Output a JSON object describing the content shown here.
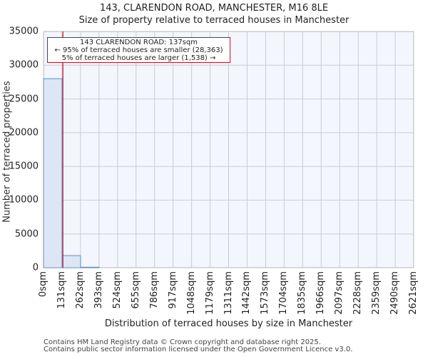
{
  "title_line1": "143, CLARENDON ROAD, MANCHESTER, M16 8LE",
  "title_line2": "Size of property relative to terraced houses in Manchester",
  "annotation": {
    "line1": "143 CLARENDON ROAD: 137sqm",
    "line2": "← 95% of terraced houses are smaller (28,363)",
    "line3": "5% of terraced houses are larger (1,538) →"
  },
  "footer": {
    "line1": "Contains HM Land Registry data © Crown copyright and database right 2025.",
    "line2": "Contains public sector information licensed under the Open Government Licence v3.0."
  },
  "colors": {
    "bar_fill": "#dce6f5",
    "bar_edge": "#5b8fd0",
    "marker_line": "#b2182b",
    "plot_bg": "#f3f6fd",
    "grid": "#cccccc"
  },
  "chart_data": {
    "type": "bar",
    "title": "143, CLARENDON ROAD, MANCHESTER, M16 8LE — Size of property relative to terraced houses in Manchester",
    "xlabel": "Distribution of terraced houses by size in Manchester",
    "ylabel": "Number of terraced properties",
    "ylim": [
      0,
      35000
    ],
    "yticks": [
      "0",
      "5000",
      "10000",
      "15000",
      "20000",
      "25000",
      "30000",
      "35000"
    ],
    "categories": [
      "0sqm",
      "131sqm",
      "262sqm",
      "393sqm",
      "524sqm",
      "655sqm",
      "786sqm",
      "917sqm",
      "1048sqm",
      "1179sqm",
      "1311sqm",
      "1442sqm",
      "1573sqm",
      "1704sqm",
      "1835sqm",
      "1966sqm",
      "2097sqm",
      "2228sqm",
      "2359sqm",
      "2490sqm",
      "2621sqm"
    ],
    "bin_edges": [
      0,
      131,
      262,
      393,
      524,
      655,
      786,
      917,
      1048,
      1179,
      1311,
      1442,
      1573,
      1704,
      1835,
      1966,
      2097,
      2228,
      2359,
      2490,
      2621
    ],
    "values": [
      28000,
      1800,
      80,
      0,
      0,
      0,
      0,
      0,
      0,
      0,
      0,
      0,
      0,
      0,
      0,
      0,
      0,
      0,
      0,
      0
    ],
    "marker": {
      "value": 137,
      "label": "143 CLARENDON ROAD: 137sqm"
    },
    "grid": true,
    "legend": "none"
  }
}
